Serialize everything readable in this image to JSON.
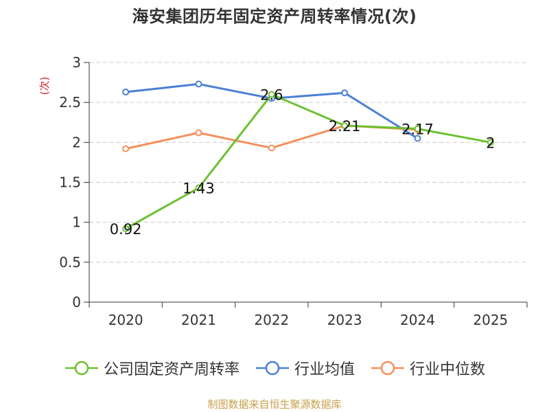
{
  "chart_data": {
    "type": "line",
    "title": "海安集团历年固定资产周转率情况(次)",
    "ylabel": "(次)",
    "xlabel": "",
    "categories": [
      "2020",
      "2021",
      "2022",
      "2023",
      "2024",
      "2025"
    ],
    "ylim": [
      0,
      3
    ],
    "yticks": [
      0,
      0.5,
      1,
      1.5,
      2,
      2.5,
      3
    ],
    "ytick_labels": [
      "0",
      "0.5",
      "1",
      "1.5",
      "2",
      "2.5",
      "3"
    ],
    "grid": "horizontal dashed",
    "legend_position": "bottom",
    "series": [
      {
        "name": "公司固定资产周转率",
        "color": "#6cc030",
        "values": [
          0.92,
          1.43,
          2.6,
          2.21,
          2.17,
          2.0
        ],
        "data_labels": [
          "0.92",
          "1.43",
          "2.6",
          "2.21",
          "2.17",
          "2"
        ]
      },
      {
        "name": "行业均值",
        "color": "#4a7fd6",
        "values": [
          2.63,
          2.73,
          2.55,
          2.62,
          2.05,
          null
        ]
      },
      {
        "name": "行业中位数",
        "color": "#f5905c",
        "values": [
          1.92,
          2.12,
          1.93,
          2.21,
          2.16,
          null
        ]
      }
    ]
  },
  "source_text": "制图数据来自恒生聚源数据库"
}
